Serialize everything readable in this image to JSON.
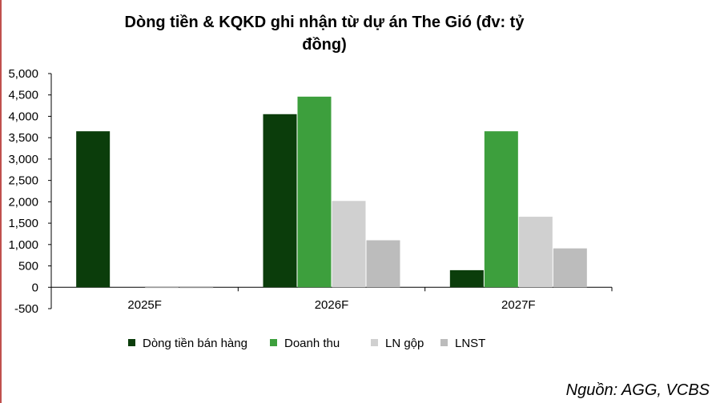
{
  "chart_data": {
    "type": "bar",
    "title_lines": [
      "Dòng tiền & KQKD ghi nhận từ dự án The Gió (đv: tỷ",
      "đồng)"
    ],
    "categories": [
      "2025F",
      "2026F",
      "2027F"
    ],
    "series": [
      {
        "name": "Dòng tiền bán hàng",
        "color": "#0b3d0b",
        "values": [
          3650,
          4050,
          400
        ]
      },
      {
        "name": "Doanh thu",
        "color": "#3d9f3d",
        "values": [
          0,
          4460,
          3650
        ]
      },
      {
        "name": "LN gộp",
        "color": "#d0d0d0",
        "values": [
          -10,
          2020,
          1650
        ]
      },
      {
        "name": "LNST",
        "color": "#bcbcbc",
        "values": [
          -10,
          1100,
          910
        ]
      }
    ],
    "ylim": [
      -500,
      5000
    ],
    "yticks": [
      -500,
      0,
      500,
      1000,
      1500,
      2000,
      2500,
      3000,
      3500,
      4000,
      4500,
      5000
    ],
    "ytick_labels": [
      "-500",
      "0",
      "500",
      "1,000",
      "1,500",
      "2,000",
      "2,500",
      "3,000",
      "3,500",
      "4,000",
      "4,500",
      "5,000"
    ],
    "legend_position": "bottom",
    "grid": false
  },
  "source": "Nguồn: AGG, VCBS"
}
